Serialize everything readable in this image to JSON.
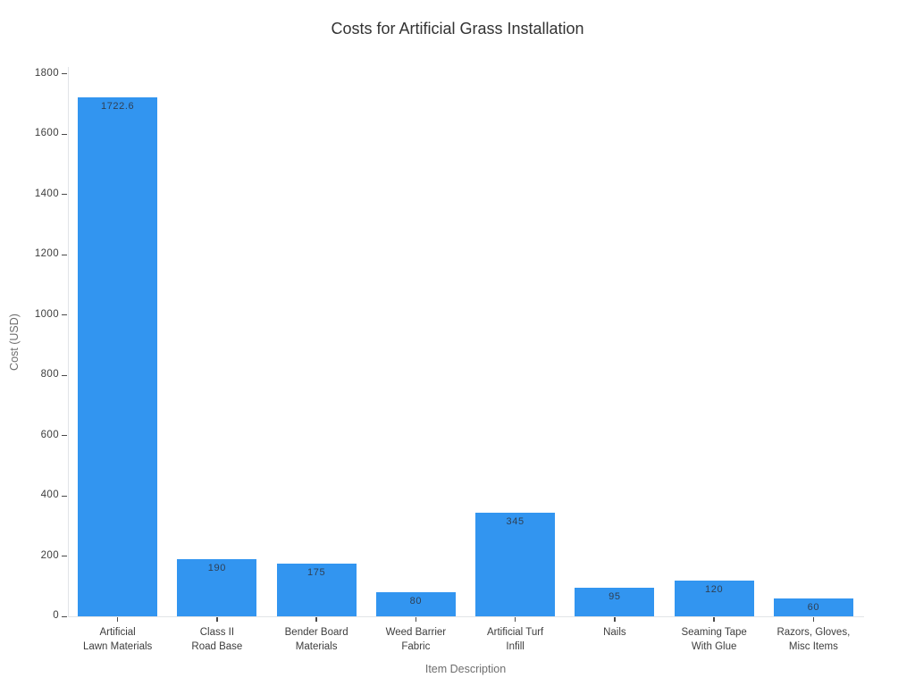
{
  "chart_data": {
    "type": "bar",
    "title": "Costs for Artificial Grass Installation",
    "xlabel": "Item Description",
    "ylabel": "Cost (USD)",
    "categories": [
      "Artificial\nLawn Materials",
      "Class II\nRoad Base",
      "Bender Board\nMaterials",
      "Weed Barrier\nFabric",
      "Artificial Turf\nInfill",
      "Nails",
      "Seaming Tape\nWith Glue",
      "Razors, Gloves,\nMisc Items"
    ],
    "values": [
      1722.6,
      190,
      175,
      80,
      345,
      95,
      120,
      60
    ],
    "value_labels": [
      "1722.6",
      "190",
      "175",
      "80",
      "345",
      "95",
      "120",
      "60"
    ],
    "ylim": [
      0,
      1800
    ],
    "ytick_step": 200,
    "ytick_labels": [
      "0",
      "200",
      "400",
      "600",
      "800",
      "1000",
      "1200",
      "1400",
      "1600",
      "1800"
    ],
    "grid": false,
    "legend_position": "none",
    "bar_color": "#3295f0",
    "axis_line_color": "#e2e4e7",
    "tick_text_color": "#3d3d3d",
    "axis_title_color": "#6e6e6e",
    "title_color": "#333333",
    "value_label_color": "#2f3f53"
  }
}
